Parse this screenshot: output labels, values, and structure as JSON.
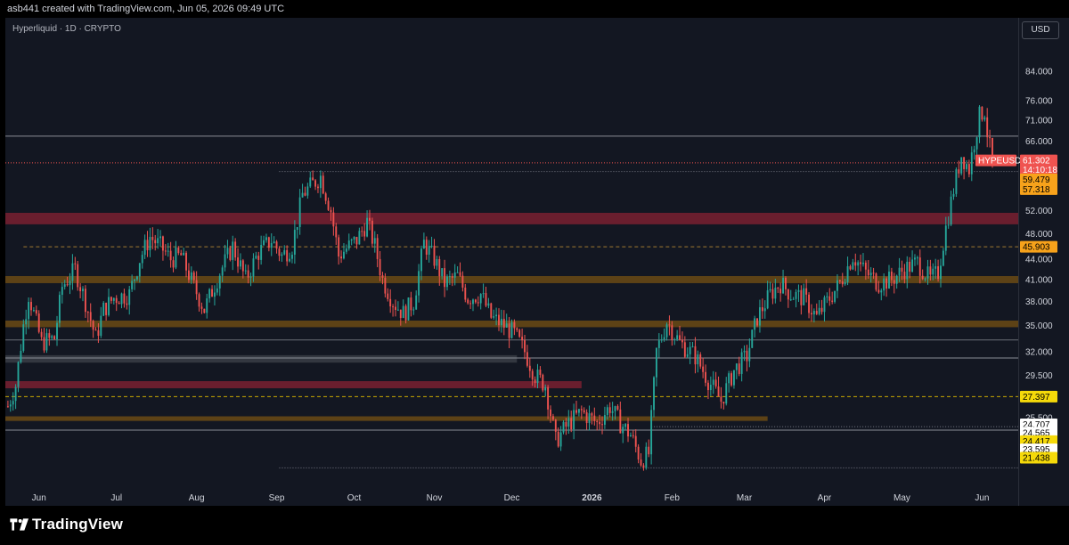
{
  "header": {
    "text": "asb441 created with TradingView.com, Jun 05, 2026 09:49 UTC"
  },
  "symbol": {
    "title": "Hyperliquid · 1D · CRYPTO"
  },
  "currency": "USD",
  "brand": {
    "name": "TradingView"
  },
  "colors": {
    "up": "#26a69a",
    "down": "#ef5350",
    "background": "#131722",
    "zone_red": "#7a2030",
    "zone_orange": "#6b4a14",
    "zone_gray": "#3a3d45",
    "label_orange": "#f7a21b",
    "label_yellow": "#f5d90a"
  },
  "chart_data": {
    "type": "candlestick",
    "symbol": "HYPEUSD",
    "interval": "1D",
    "y_scale": "log",
    "ylim": [
      20.0,
      95.0
    ],
    "x_range": [
      "2025-05-19",
      "2026-06-15"
    ],
    "y_ticks": [
      "84.000",
      "76.000",
      "71.000",
      "66.000",
      "52.000",
      "48.000",
      "44.000",
      "41.000",
      "38.000",
      "35.000",
      "32.000",
      "29.500",
      "25.500"
    ],
    "x_ticks": [
      {
        "label": "Jun",
        "date": "2025-06-01",
        "bold": false
      },
      {
        "label": "Jul",
        "date": "2025-07-01",
        "bold": false
      },
      {
        "label": "Aug",
        "date": "2025-08-01",
        "bold": false
      },
      {
        "label": "Sep",
        "date": "2025-09-01",
        "bold": false
      },
      {
        "label": "Oct",
        "date": "2025-10-01",
        "bold": false
      },
      {
        "label": "Nov",
        "date": "2025-11-01",
        "bold": false
      },
      {
        "label": "Dec",
        "date": "2025-12-01",
        "bold": false
      },
      {
        "label": "2026",
        "date": "2026-01-01",
        "bold": true
      },
      {
        "label": "Feb",
        "date": "2026-02-01",
        "bold": false
      },
      {
        "label": "Mar",
        "date": "2026-03-01",
        "bold": false
      },
      {
        "label": "Apr",
        "date": "2026-04-01",
        "bold": false
      },
      {
        "label": "May",
        "date": "2026-05-01",
        "bold": false
      },
      {
        "label": "Jun",
        "date": "2026-06-01",
        "bold": false
      }
    ],
    "price_path": [
      [
        "2025-05-20",
        26.5
      ],
      [
        "2025-05-23",
        28.5
      ],
      [
        "2025-05-26",
        35.0
      ],
      [
        "2025-05-28",
        39.0
      ],
      [
        "2025-06-02",
        33.0
      ],
      [
        "2025-06-07",
        33.5
      ],
      [
        "2025-06-10",
        40.0
      ],
      [
        "2025-06-15",
        42.5
      ],
      [
        "2025-06-19",
        38.0
      ],
      [
        "2025-06-23",
        33.5
      ],
      [
        "2025-06-26",
        37.0
      ],
      [
        "2025-06-30",
        38.5
      ],
      [
        "2025-07-06",
        39.0
      ],
      [
        "2025-07-10",
        44.0
      ],
      [
        "2025-07-14",
        47.5
      ],
      [
        "2025-07-18",
        46.0
      ],
      [
        "2025-07-22",
        44.0
      ],
      [
        "2025-07-26",
        44.5
      ],
      [
        "2025-07-31",
        40.0
      ],
      [
        "2025-08-04",
        37.0
      ],
      [
        "2025-08-10",
        42.0
      ],
      [
        "2025-08-15",
        46.0
      ],
      [
        "2025-08-20",
        41.0
      ],
      [
        "2025-08-25",
        45.0
      ],
      [
        "2025-08-30",
        47.0
      ],
      [
        "2025-09-03",
        44.5
      ],
      [
        "2025-09-07",
        46.0
      ],
      [
        "2025-09-11",
        55.0
      ],
      [
        "2025-09-15",
        57.0
      ],
      [
        "2025-09-18",
        58.5
      ],
      [
        "2025-09-22",
        52.0
      ],
      [
        "2025-09-25",
        44.5
      ],
      [
        "2025-09-29",
        46.0
      ],
      [
        "2025-10-02",
        47.0
      ],
      [
        "2025-10-06",
        50.0
      ],
      [
        "2025-10-09",
        46.0
      ],
      [
        "2025-10-12",
        41.0
      ],
      [
        "2025-10-16",
        38.0
      ],
      [
        "2025-10-20",
        36.5
      ],
      [
        "2025-10-24",
        38.0
      ],
      [
        "2025-10-28",
        46.5
      ],
      [
        "2025-11-01",
        44.0
      ],
      [
        "2025-11-05",
        40.5
      ],
      [
        "2025-11-10",
        41.5
      ],
      [
        "2025-11-14",
        38.5
      ],
      [
        "2025-11-19",
        39.0
      ],
      [
        "2025-11-23",
        36.0
      ],
      [
        "2025-11-28",
        35.0
      ],
      [
        "2025-12-02",
        34.0
      ],
      [
        "2025-12-06",
        32.0
      ],
      [
        "2025-12-10",
        29.5
      ],
      [
        "2025-12-14",
        28.5
      ],
      [
        "2025-12-18",
        23.5
      ],
      [
        "2025-12-23",
        25.0
      ],
      [
        "2025-12-28",
        26.0
      ],
      [
        "2026-01-03",
        25.0
      ],
      [
        "2026-01-08",
        26.5
      ],
      [
        "2026-01-12",
        25.0
      ],
      [
        "2026-01-16",
        24.0
      ],
      [
        "2026-01-20",
        22.0
      ],
      [
        "2026-01-23",
        22.5
      ],
      [
        "2026-01-26",
        32.0
      ],
      [
        "2026-01-30",
        35.5
      ],
      [
        "2026-02-04",
        33.0
      ],
      [
        "2026-02-10",
        31.5
      ],
      [
        "2026-02-15",
        29.0
      ],
      [
        "2026-02-20",
        27.0
      ],
      [
        "2026-02-25",
        30.0
      ],
      [
        "2026-03-02",
        31.5
      ],
      [
        "2026-03-06",
        36.0
      ],
      [
        "2026-03-11",
        39.0
      ],
      [
        "2026-03-15",
        40.5
      ],
      [
        "2026-03-19",
        39.0
      ],
      [
        "2026-03-24",
        38.5
      ],
      [
        "2026-03-29",
        36.0
      ],
      [
        "2026-04-02",
        38.0
      ],
      [
        "2026-04-07",
        40.5
      ],
      [
        "2026-04-12",
        44.5
      ],
      [
        "2026-04-17",
        42.0
      ],
      [
        "2026-04-22",
        40.5
      ],
      [
        "2026-04-27",
        41.0
      ],
      [
        "2026-05-02",
        42.5
      ],
      [
        "2026-05-07",
        43.5
      ],
      [
        "2026-05-12",
        41.0
      ],
      [
        "2026-05-15",
        42.0
      ],
      [
        "2026-05-18",
        49.0
      ],
      [
        "2026-05-21",
        56.0
      ],
      [
        "2026-05-24",
        63.0
      ],
      [
        "2026-05-27",
        60.0
      ],
      [
        "2026-05-29",
        66.0
      ],
      [
        "2026-05-31",
        72.0
      ],
      [
        "2026-06-02",
        73.5
      ],
      [
        "2026-06-03",
        68.0
      ],
      [
        "2026-06-05",
        61.3
      ]
    ],
    "zones": [
      {
        "color": "red",
        "low": 49.6,
        "high": 51.6,
        "from": "2025-05-19",
        "to": "2026-06-15"
      },
      {
        "color": "orange",
        "low": 40.5,
        "high": 41.5,
        "from": "2025-05-19",
        "to": "2026-06-15"
      },
      {
        "color": "orange",
        "low": 34.8,
        "high": 35.6,
        "from": "2025-05-19",
        "to": "2026-06-15"
      },
      {
        "color": "gray",
        "low": 30.8,
        "high": 31.6,
        "from": "2025-05-19",
        "to": "2025-12-03"
      },
      {
        "color": "red",
        "low": 28.2,
        "high": 28.9,
        "from": "2025-05-19",
        "to": "2025-12-28"
      },
      {
        "color": "orange",
        "low": 25.2,
        "high": 25.6,
        "from": "2025-05-19",
        "to": "2026-03-10"
      }
    ],
    "lines": [
      {
        "price": 67.2,
        "style": "solid",
        "color": "#8a8d96"
      },
      {
        "price": 61.302,
        "style": "dotted",
        "color": "#ef5350"
      },
      {
        "price": 59.479,
        "style": "dotted",
        "color": "#787b86",
        "from": "2025-09-02"
      },
      {
        "price": 45.903,
        "style": "dashed",
        "color": "#a07a30",
        "from": "2025-05-26"
      },
      {
        "price": 33.3,
        "style": "solid",
        "color": "#6b6e76"
      },
      {
        "price": 31.3,
        "style": "solid",
        "color": "#8a8d96"
      },
      {
        "price": 27.397,
        "style": "dashed",
        "color": "#c9a800"
      },
      {
        "price": 24.707,
        "style": "dotted",
        "color": "#787b86",
        "from": "2026-01-24"
      },
      {
        "price": 24.417,
        "style": "solid",
        "color": "#8a8d96"
      },
      {
        "price": 21.438,
        "style": "dotted",
        "color": "#787b86",
        "from": "2025-09-02"
      }
    ],
    "price_labels": [
      {
        "text": "HYPEUSD",
        "price": 61.8,
        "bg": "#ef5350",
        "fg": "#ffffff",
        "side": "left"
      },
      {
        "text": "61.302",
        "price": 61.8,
        "bg": "#ef5350",
        "fg": "#ffffff",
        "side": "axis"
      },
      {
        "text": "14:10:18",
        "price": 59.9,
        "bg": "#ef5350",
        "fg": "#ffffff",
        "side": "axis"
      },
      {
        "text": "59.479",
        "price": 57.9,
        "bg": "#f7a21b",
        "fg": "#000000",
        "side": "axis"
      },
      {
        "text": "57.318",
        "price": 56.0,
        "bg": "#f7a21b",
        "fg": "#000000",
        "side": "axis"
      },
      {
        "text": "45.903",
        "price": 45.903,
        "bg": "#f7a21b",
        "fg": "#000000",
        "side": "axis"
      },
      {
        "text": "27.397",
        "price": 27.397,
        "bg": "#f5d90a",
        "fg": "#000000",
        "side": "axis"
      },
      {
        "text": "24.707",
        "price": 24.9,
        "bg": "#ffffff",
        "fg": "#000000",
        "side": "axis"
      },
      {
        "text": "24.565",
        "price": 24.2,
        "bg": "#ffffff",
        "fg": "#000000",
        "side": "axis"
      },
      {
        "text": "24.417",
        "price": 23.5,
        "bg": "#f5d90a",
        "fg": "#000000",
        "side": "axis"
      },
      {
        "text": "23.595",
        "price": 22.85,
        "bg": "#ffffff",
        "fg": "#000000",
        "side": "axis"
      },
      {
        "text": "21.438",
        "price": 22.2,
        "bg": "#f5d90a",
        "fg": "#000000",
        "side": "axis"
      }
    ]
  }
}
